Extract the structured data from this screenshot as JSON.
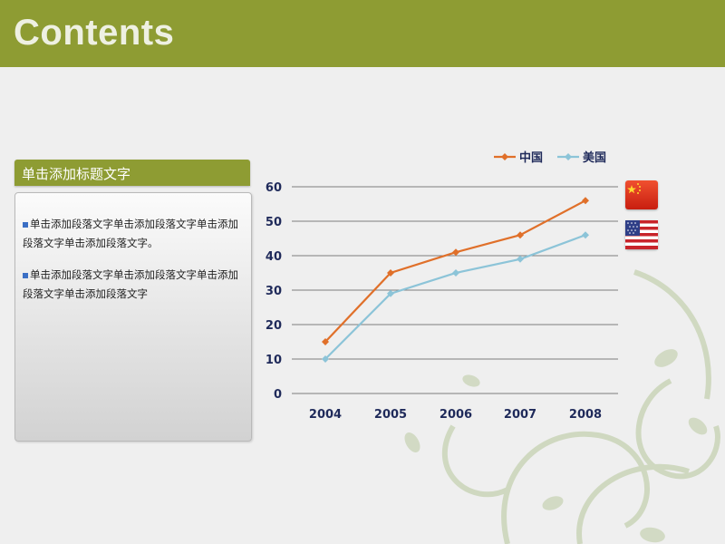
{
  "slide": {
    "title": "Contents"
  },
  "panel": {
    "heading": "单击添加标题文字",
    "paragraphs": [
      "单击添加段落文字单击添加段落文字单击添加段落文字单击添加段落文字。",
      "单击添加段落文字单击添加段落文字单击添加段落文字单击添加段落文字"
    ]
  },
  "flags": {
    "china": "china-flag-icon",
    "usa": "usa-flag-icon"
  },
  "colors": {
    "banner": "#8e9c33",
    "series_china": "#e0702a",
    "series_usa": "#8cc4d8"
  },
  "chart_data": {
    "type": "line",
    "categories": [
      "2004",
      "2005",
      "2006",
      "2007",
      "2008"
    ],
    "series": [
      {
        "name": "中国",
        "values": [
          15,
          35,
          41,
          46,
          56
        ],
        "color": "#e0702a"
      },
      {
        "name": "美国",
        "values": [
          10,
          29,
          35,
          39,
          46
        ],
        "color": "#8cc4d8"
      }
    ],
    "yticks": [
      0,
      10,
      20,
      30,
      40,
      50,
      60
    ],
    "ylim": [
      0,
      60
    ],
    "grid": true,
    "legend": "top-right"
  }
}
